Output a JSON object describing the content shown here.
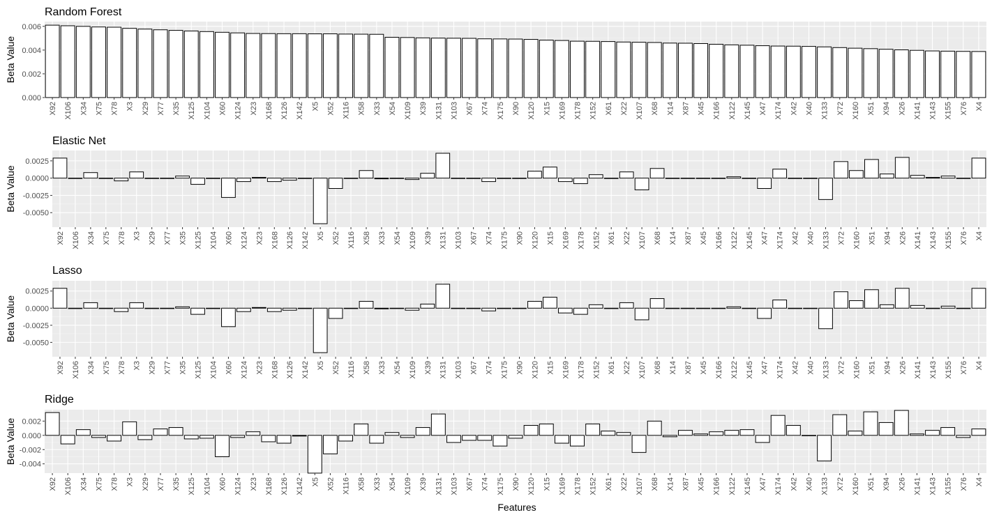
{
  "figure": {
    "xlabel": "Features"
  },
  "chart_data": [
    {
      "type": "bar",
      "title": "Random Forest",
      "ylabel": "Beta Value",
      "xlabel": "",
      "ylim": [
        0,
        0.0064
      ],
      "yticks": [
        0,
        0.002,
        0.004,
        0.006
      ],
      "ytick_labels": [
        "0.000",
        "0.002",
        "0.004",
        "0.006"
      ],
      "categories": [
        "X92",
        "X106",
        "X34",
        "X75",
        "X78",
        "X3",
        "X29",
        "X77",
        "X35",
        "X125",
        "X104",
        "X60",
        "X124",
        "X23",
        "X168",
        "X126",
        "X142",
        "X5",
        "X52",
        "X116",
        "X58",
        "X33",
        "X54",
        "X109",
        "X39",
        "X131",
        "X103",
        "X67",
        "X74",
        "X175",
        "X90",
        "X120",
        "X15",
        "X169",
        "X178",
        "X152",
        "X61",
        "X22",
        "X107",
        "X68",
        "X14",
        "X87",
        "X45",
        "X166",
        "X122",
        "X145",
        "X47",
        "X174",
        "X42",
        "X40",
        "X133",
        "X72",
        "X160",
        "X51",
        "X94",
        "X26",
        "X141",
        "X143",
        "X155",
        "X76",
        "X4"
      ],
      "values": [
        0.0061,
        0.00605,
        0.006,
        0.00595,
        0.00593,
        0.00583,
        0.00577,
        0.00571,
        0.00566,
        0.00561,
        0.00556,
        0.0055,
        0.00545,
        0.0054,
        0.00539,
        0.00538,
        0.00538,
        0.00537,
        0.00537,
        0.00535,
        0.00534,
        0.00533,
        0.00508,
        0.00506,
        0.00503,
        0.00501,
        0.005,
        0.00499,
        0.00495,
        0.00494,
        0.00493,
        0.0049,
        0.00484,
        0.00481,
        0.00475,
        0.00474,
        0.00472,
        0.00468,
        0.00466,
        0.00464,
        0.00459,
        0.00458,
        0.00455,
        0.00449,
        0.00444,
        0.00441,
        0.00437,
        0.00434,
        0.00433,
        0.00431,
        0.00427,
        0.00421,
        0.00416,
        0.00412,
        0.00407,
        0.00402,
        0.00398,
        0.00393,
        0.00391,
        0.00389,
        0.00388
      ]
    },
    {
      "type": "bar",
      "title": "Elastic Net",
      "ylabel": "Beta Value",
      "xlabel": "",
      "ylim": [
        -0.0071,
        0.004
      ],
      "yticks": [
        -0.005,
        -0.0025,
        0,
        0.0025
      ],
      "ytick_labels": [
        "-0.0050",
        "-0.0025",
        "0.0000",
        "0.0025"
      ],
      "categories": [
        "X92",
        "X106",
        "X34",
        "X75",
        "X78",
        "X3",
        "X29",
        "X77",
        "X35",
        "X125",
        "X104",
        "X60",
        "X124",
        "X23",
        "X168",
        "X126",
        "X142",
        "X5",
        "X52",
        "X116",
        "X58",
        "X33",
        "X54",
        "X109",
        "X39",
        "X131",
        "X103",
        "X67",
        "X74",
        "X175",
        "X90",
        "X120",
        "X15",
        "X169",
        "X178",
        "X152",
        "X61",
        "X22",
        "X107",
        "X68",
        "X14",
        "X87",
        "X45",
        "X166",
        "X122",
        "X145",
        "X47",
        "X174",
        "X42",
        "X40",
        "X133",
        "X72",
        "X160",
        "X51",
        "X94",
        "X26",
        "X141",
        "X143",
        "X155",
        "X76",
        "X4"
      ],
      "values": [
        0.0029,
        0,
        0.0008,
        0,
        -0.0004,
        0.0009,
        0,
        0,
        0.0003,
        -0.0009,
        0,
        -0.0028,
        -0.0005,
        0.0001,
        -0.0005,
        -0.0003,
        0,
        -0.0066,
        -0.0015,
        0,
        0.0011,
        -0.0001,
        0,
        -0.0002,
        0.0007,
        0.0036,
        0,
        0,
        -0.0005,
        0,
        0,
        0.001,
        0.0016,
        -0.0005,
        -0.0008,
        0.0005,
        0,
        0.0009,
        -0.0017,
        0.0014,
        0,
        0,
        0,
        0,
        0.0002,
        0,
        -0.0015,
        0.0013,
        0,
        0,
        -0.0031,
        0.0024,
        0.0011,
        0.0027,
        0.0006,
        0.003,
        0.0004,
        0.0001,
        0.0003,
        0,
        0.0029
      ]
    },
    {
      "type": "bar",
      "title": "Lasso",
      "ylabel": "Beta Value",
      "xlabel": "",
      "ylim": [
        -0.0071,
        0.004
      ],
      "yticks": [
        -0.005,
        -0.0025,
        0,
        0.0025
      ],
      "ytick_labels": [
        "-0.0050",
        "-0.0025",
        "0.0000",
        "0.0025"
      ],
      "categories": [
        "X92",
        "X106",
        "X34",
        "X75",
        "X78",
        "X3",
        "X29",
        "X77",
        "X35",
        "X125",
        "X104",
        "X60",
        "X124",
        "X23",
        "X168",
        "X126",
        "X142",
        "X5",
        "X52",
        "X116",
        "X58",
        "X33",
        "X54",
        "X109",
        "X39",
        "X131",
        "X103",
        "X67",
        "X74",
        "X175",
        "X90",
        "X120",
        "X15",
        "X169",
        "X178",
        "X152",
        "X61",
        "X22",
        "X107",
        "X68",
        "X14",
        "X87",
        "X45",
        "X166",
        "X122",
        "X145",
        "X47",
        "X174",
        "X42",
        "X40",
        "X133",
        "X72",
        "X160",
        "X51",
        "X94",
        "X26",
        "X141",
        "X143",
        "X155",
        "X76",
        "X4"
      ],
      "values": [
        0.0029,
        0,
        0.0008,
        0,
        -0.0005,
        0.0008,
        0,
        0,
        0.0002,
        -0.0009,
        0,
        -0.0027,
        -0.0005,
        0.0001,
        -0.0005,
        -0.0003,
        0,
        -0.0065,
        -0.0015,
        0,
        0.001,
        -0.0001,
        0,
        -0.0003,
        0.0006,
        0.0035,
        0,
        0,
        -0.0004,
        0,
        0,
        0.001,
        0.0016,
        -0.0007,
        -0.0009,
        0.0005,
        0,
        0.0008,
        -0.0017,
        0.0014,
        0,
        0,
        0,
        0,
        0.0002,
        0,
        -0.0015,
        0.0012,
        0,
        0,
        -0.003,
        0.0024,
        0.0011,
        0.0027,
        0.0005,
        0.0029,
        0.0004,
        0,
        0.0003,
        0,
        0.0029
      ]
    },
    {
      "type": "bar",
      "title": "Ridge",
      "ylabel": "Beta Value",
      "xlabel": "",
      "ylim": [
        -0.0053,
        0.0036
      ],
      "yticks": [
        -0.004,
        -0.002,
        0,
        0.002
      ],
      "ytick_labels": [
        "-0.004",
        "-0.002",
        "0.000",
        "0.002"
      ],
      "categories": [
        "X92",
        "X106",
        "X34",
        "X75",
        "X78",
        "X3",
        "X29",
        "X77",
        "X35",
        "X125",
        "X104",
        "X60",
        "X124",
        "X23",
        "X168",
        "X126",
        "X142",
        "X5",
        "X52",
        "X116",
        "X58",
        "X33",
        "X54",
        "X109",
        "X39",
        "X131",
        "X103",
        "X67",
        "X74",
        "X175",
        "X90",
        "X120",
        "X15",
        "X169",
        "X178",
        "X152",
        "X61",
        "X22",
        "X107",
        "X68",
        "X14",
        "X87",
        "X45",
        "X166",
        "X122",
        "X145",
        "X47",
        "X174",
        "X42",
        "X40",
        "X133",
        "X72",
        "X160",
        "X51",
        "X94",
        "X26",
        "X141",
        "X143",
        "X155",
        "X76",
        "X4"
      ],
      "values": [
        0.0032,
        -0.0012,
        0.0008,
        -0.0003,
        -0.0008,
        0.0019,
        -0.0006,
        0.0009,
        0.0011,
        -0.0005,
        -0.0004,
        -0.003,
        -0.0003,
        0.0005,
        -0.0009,
        -0.0011,
        -0.0001,
        -0.0053,
        -0.0026,
        -0.0008,
        0.0016,
        -0.0011,
        0.0004,
        -0.0003,
        0.0011,
        0.003,
        -0.001,
        -0.0007,
        -0.0007,
        -0.0015,
        -0.0004,
        0.0014,
        0.0016,
        -0.0011,
        -0.0015,
        0.0016,
        0.0006,
        0.0004,
        -0.0024,
        0.002,
        -0.0002,
        0.0007,
        0.0002,
        0.0005,
        0.0007,
        0.0008,
        -0.001,
        0.0028,
        0.0014,
        0,
        -0.0036,
        0.0029,
        0.0006,
        0.0033,
        0.0018,
        0.0035,
        0.0002,
        0.0007,
        0.0011,
        -0.0003,
        0.0009
      ]
    }
  ]
}
